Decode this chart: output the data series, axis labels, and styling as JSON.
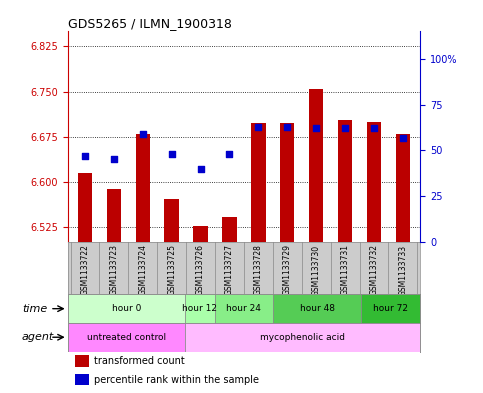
{
  "title": "GDS5265 / ILMN_1900318",
  "samples": [
    "GSM1133722",
    "GSM1133723",
    "GSM1133724",
    "GSM1133725",
    "GSM1133726",
    "GSM1133727",
    "GSM1133728",
    "GSM1133729",
    "GSM1133730",
    "GSM1133731",
    "GSM1133732",
    "GSM1133733"
  ],
  "bar_values": [
    6.614,
    6.588,
    6.679,
    6.572,
    6.527,
    6.542,
    6.698,
    6.697,
    6.755,
    6.702,
    6.7,
    6.68
  ],
  "dot_values": [
    47,
    45,
    59,
    48,
    40,
    48,
    63,
    63,
    62,
    62,
    62,
    57
  ],
  "ylim_left": [
    6.5,
    6.85
  ],
  "ylim_right": [
    0,
    115
  ],
  "yticks_left": [
    6.525,
    6.6,
    6.675,
    6.75,
    6.825
  ],
  "yticks_right": [
    0,
    25,
    50,
    75,
    100
  ],
  "ytick_right_labels": [
    "0",
    "25",
    "50",
    "75",
    "100%"
  ],
  "bar_color": "#bb0000",
  "dot_color": "#0000cc",
  "bar_bottom": 6.5,
  "time_groups": [
    {
      "label": "hour 0",
      "start": 0,
      "end": 4,
      "color": "#ccffcc"
    },
    {
      "label": "hour 12",
      "start": 4,
      "end": 5,
      "color": "#99ff99"
    },
    {
      "label": "hour 24",
      "start": 5,
      "end": 7,
      "color": "#66ee66"
    },
    {
      "label": "hour 48",
      "start": 7,
      "end": 10,
      "color": "#44cc44"
    },
    {
      "label": "hour 72",
      "start": 10,
      "end": 12,
      "color": "#22bb22"
    }
  ],
  "agent_groups": [
    {
      "label": "untreated control",
      "start": 0,
      "end": 4,
      "color": "#ff88ff"
    },
    {
      "label": "mycophenolic acid",
      "start": 4,
      "end": 12,
      "color": "#ffbbff"
    }
  ],
  "time_row_label": "time",
  "agent_row_label": "agent",
  "legend_bar_label": "transformed count",
  "legend_dot_label": "percentile rank within the sample",
  "background_color": "#ffffff",
  "sample_bg_color": "#cccccc",
  "plot_bg_color": "#ffffff"
}
